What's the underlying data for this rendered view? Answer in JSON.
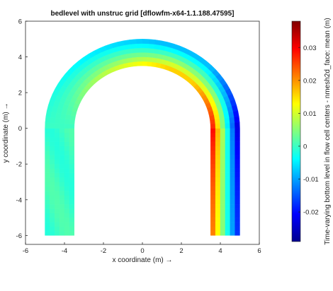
{
  "chart_data": {
    "type": "heatmap",
    "title": "bedlevel with unstruc grid [dflowfm-x64-1.1.188.47595]",
    "xlabel": "x coordinate (m) →",
    "ylabel": "y coordinate (m) →",
    "colorbar_label": "Time-varying bottom level in flow cell centers - nmesh2d_face: mean (m)",
    "xlim": [
      -6,
      6
    ],
    "ylim": [
      -6.5,
      6
    ],
    "xticks": [
      "-6",
      "-4",
      "-2",
      "0",
      "2",
      "4",
      "6"
    ],
    "yticks": [
      "-6",
      "-4",
      "-2",
      "0",
      "2",
      "4",
      "6"
    ],
    "clim": [
      -0.029,
      0.038
    ],
    "cticks": [
      "0.03",
      "0.02",
      "0.01",
      "0",
      "-0.01",
      "-0.02"
    ],
    "colormap": "jet",
    "grid": false,
    "geometry": {
      "channel": "U-shaped bend",
      "inner_radius": 3.5,
      "outer_radius": 5,
      "center": [
        0,
        0
      ],
      "left_leg": {
        "x_range": [
          -5,
          -3.5
        ],
        "y_range": [
          -6,
          0
        ]
      },
      "right_leg": {
        "x_range": [
          3.5,
          5
        ],
        "y_range": [
          -6,
          0
        ]
      }
    },
    "field_description_levels": {
      "left_leg": 0.0,
      "bend_outer_edge": -0.01,
      "bend_inner_edge_peak": 0.02,
      "right_leg_inner_edge": 0.036,
      "right_leg_outer_edge": -0.027
    }
  }
}
